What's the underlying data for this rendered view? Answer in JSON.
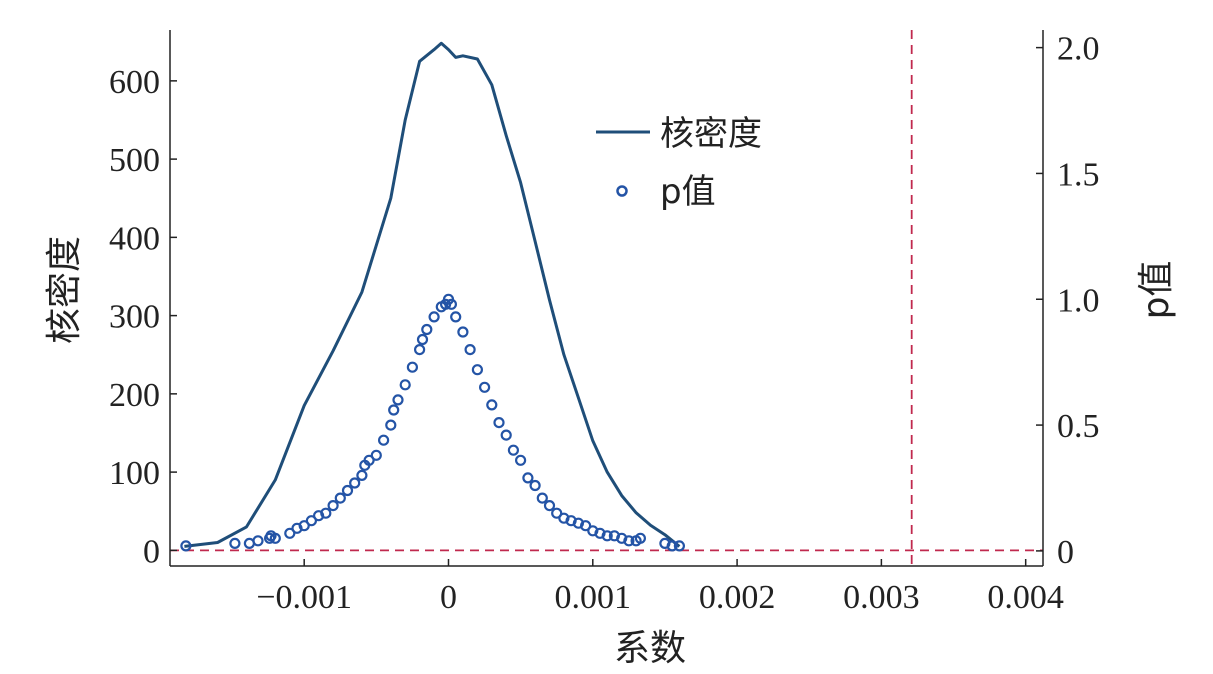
{
  "chart_data": {
    "type": "line",
    "xlabel": "系数",
    "ylabel": "核密度",
    "y2label": "p值",
    "xlim": [
      -0.00193,
      0.00412
    ],
    "ylim": [
      -20,
      665
    ],
    "y2lim": [
      -0.06,
      2.07
    ],
    "x_ticks": [
      -0.001,
      0,
      0.001,
      0.002,
      0.003,
      0.004
    ],
    "x_tick_labels": [
      "−0.001",
      "0",
      "0.001",
      "0.002",
      "0.003",
      "0.004"
    ],
    "y_ticks": [
      0,
      100,
      200,
      300,
      400,
      500,
      600
    ],
    "y_tick_labels": [
      "0",
      "100",
      "200",
      "300",
      "400",
      "500",
      "600"
    ],
    "y2_ticks": [
      0,
      0.5,
      1.0,
      1.5,
      2.0
    ],
    "y2_tick_labels": [
      "0",
      "0.5",
      "1.0",
      "1.5",
      "2.0"
    ],
    "legend_position": "top-center",
    "grid": false,
    "series": [
      {
        "name": "核密度",
        "kind": "line",
        "axis": "left",
        "color": "#1f4e79",
        "x": [
          -0.00183,
          -0.0016,
          -0.0014,
          -0.0012,
          -0.001,
          -0.0008,
          -0.0006,
          -0.0004,
          -0.0003,
          -0.0002,
          -0.0001,
          -5e-05,
          0,
          5e-05,
          0.0001,
          0.0002,
          0.0003,
          0.0004,
          0.0005,
          0.0006,
          0.0007,
          0.0008,
          0.0009,
          0.001,
          0.0011,
          0.0012,
          0.0013,
          0.0014,
          0.0015,
          0.0016
        ],
        "y": [
          5,
          10,
          30,
          90,
          185,
          255,
          330,
          450,
          550,
          625,
          640,
          648,
          640,
          630,
          632,
          628,
          595,
          530,
          470,
          395,
          320,
          250,
          195,
          140,
          100,
          70,
          48,
          32,
          20,
          5
        ]
      },
      {
        "name": "p值",
        "kind": "scatter",
        "axis": "right",
        "color": "#2454a6",
        "x": [
          -0.00182,
          -0.00148,
          -0.00138,
          -0.00132,
          -0.00124,
          -0.00123,
          -0.0012,
          -0.0011,
          -0.00105,
          -0.001,
          -0.00095,
          -0.0009,
          -0.00085,
          -0.0008,
          -0.00075,
          -0.0007,
          -0.00065,
          -0.0006,
          -0.00058,
          -0.00055,
          -0.0005,
          -0.00045,
          -0.0004,
          -0.00038,
          -0.00035,
          -0.0003,
          -0.00025,
          -0.0002,
          -0.00018,
          -0.00015,
          -0.0001,
          -5e-05,
          -2e-05,
          0,
          2e-05,
          5e-05,
          0.0001,
          0.00015,
          0.0002,
          0.00025,
          0.0003,
          0.00035,
          0.0004,
          0.00045,
          0.0005,
          0.00055,
          0.0006,
          0.00065,
          0.0007,
          0.00075,
          0.0008,
          0.00085,
          0.0009,
          0.00095,
          0.001,
          0.00105,
          0.0011,
          0.00115,
          0.0012,
          0.00125,
          0.0013,
          0.00133,
          0.0015,
          0.00155,
          0.0016
        ],
        "y": [
          0.02,
          0.03,
          0.03,
          0.04,
          0.05,
          0.06,
          0.05,
          0.07,
          0.09,
          0.1,
          0.12,
          0.14,
          0.15,
          0.18,
          0.21,
          0.24,
          0.27,
          0.3,
          0.34,
          0.36,
          0.38,
          0.44,
          0.5,
          0.56,
          0.6,
          0.66,
          0.73,
          0.8,
          0.84,
          0.88,
          0.93,
          0.97,
          0.98,
          1.0,
          0.98,
          0.93,
          0.87,
          0.8,
          0.72,
          0.65,
          0.58,
          0.51,
          0.46,
          0.4,
          0.36,
          0.29,
          0.26,
          0.21,
          0.18,
          0.15,
          0.13,
          0.12,
          0.11,
          0.1,
          0.08,
          0.07,
          0.06,
          0.06,
          0.05,
          0.04,
          0.04,
          0.05,
          0.03,
          0.02,
          0.02
        ]
      }
    ],
    "reference_lines": [
      {
        "orientation": "horizontal",
        "axis": "left",
        "value": 0,
        "color": "#c0294e",
        "style": "dashed"
      },
      {
        "orientation": "vertical",
        "value": 0.00321,
        "color": "#c0294e",
        "style": "dashed"
      }
    ]
  }
}
